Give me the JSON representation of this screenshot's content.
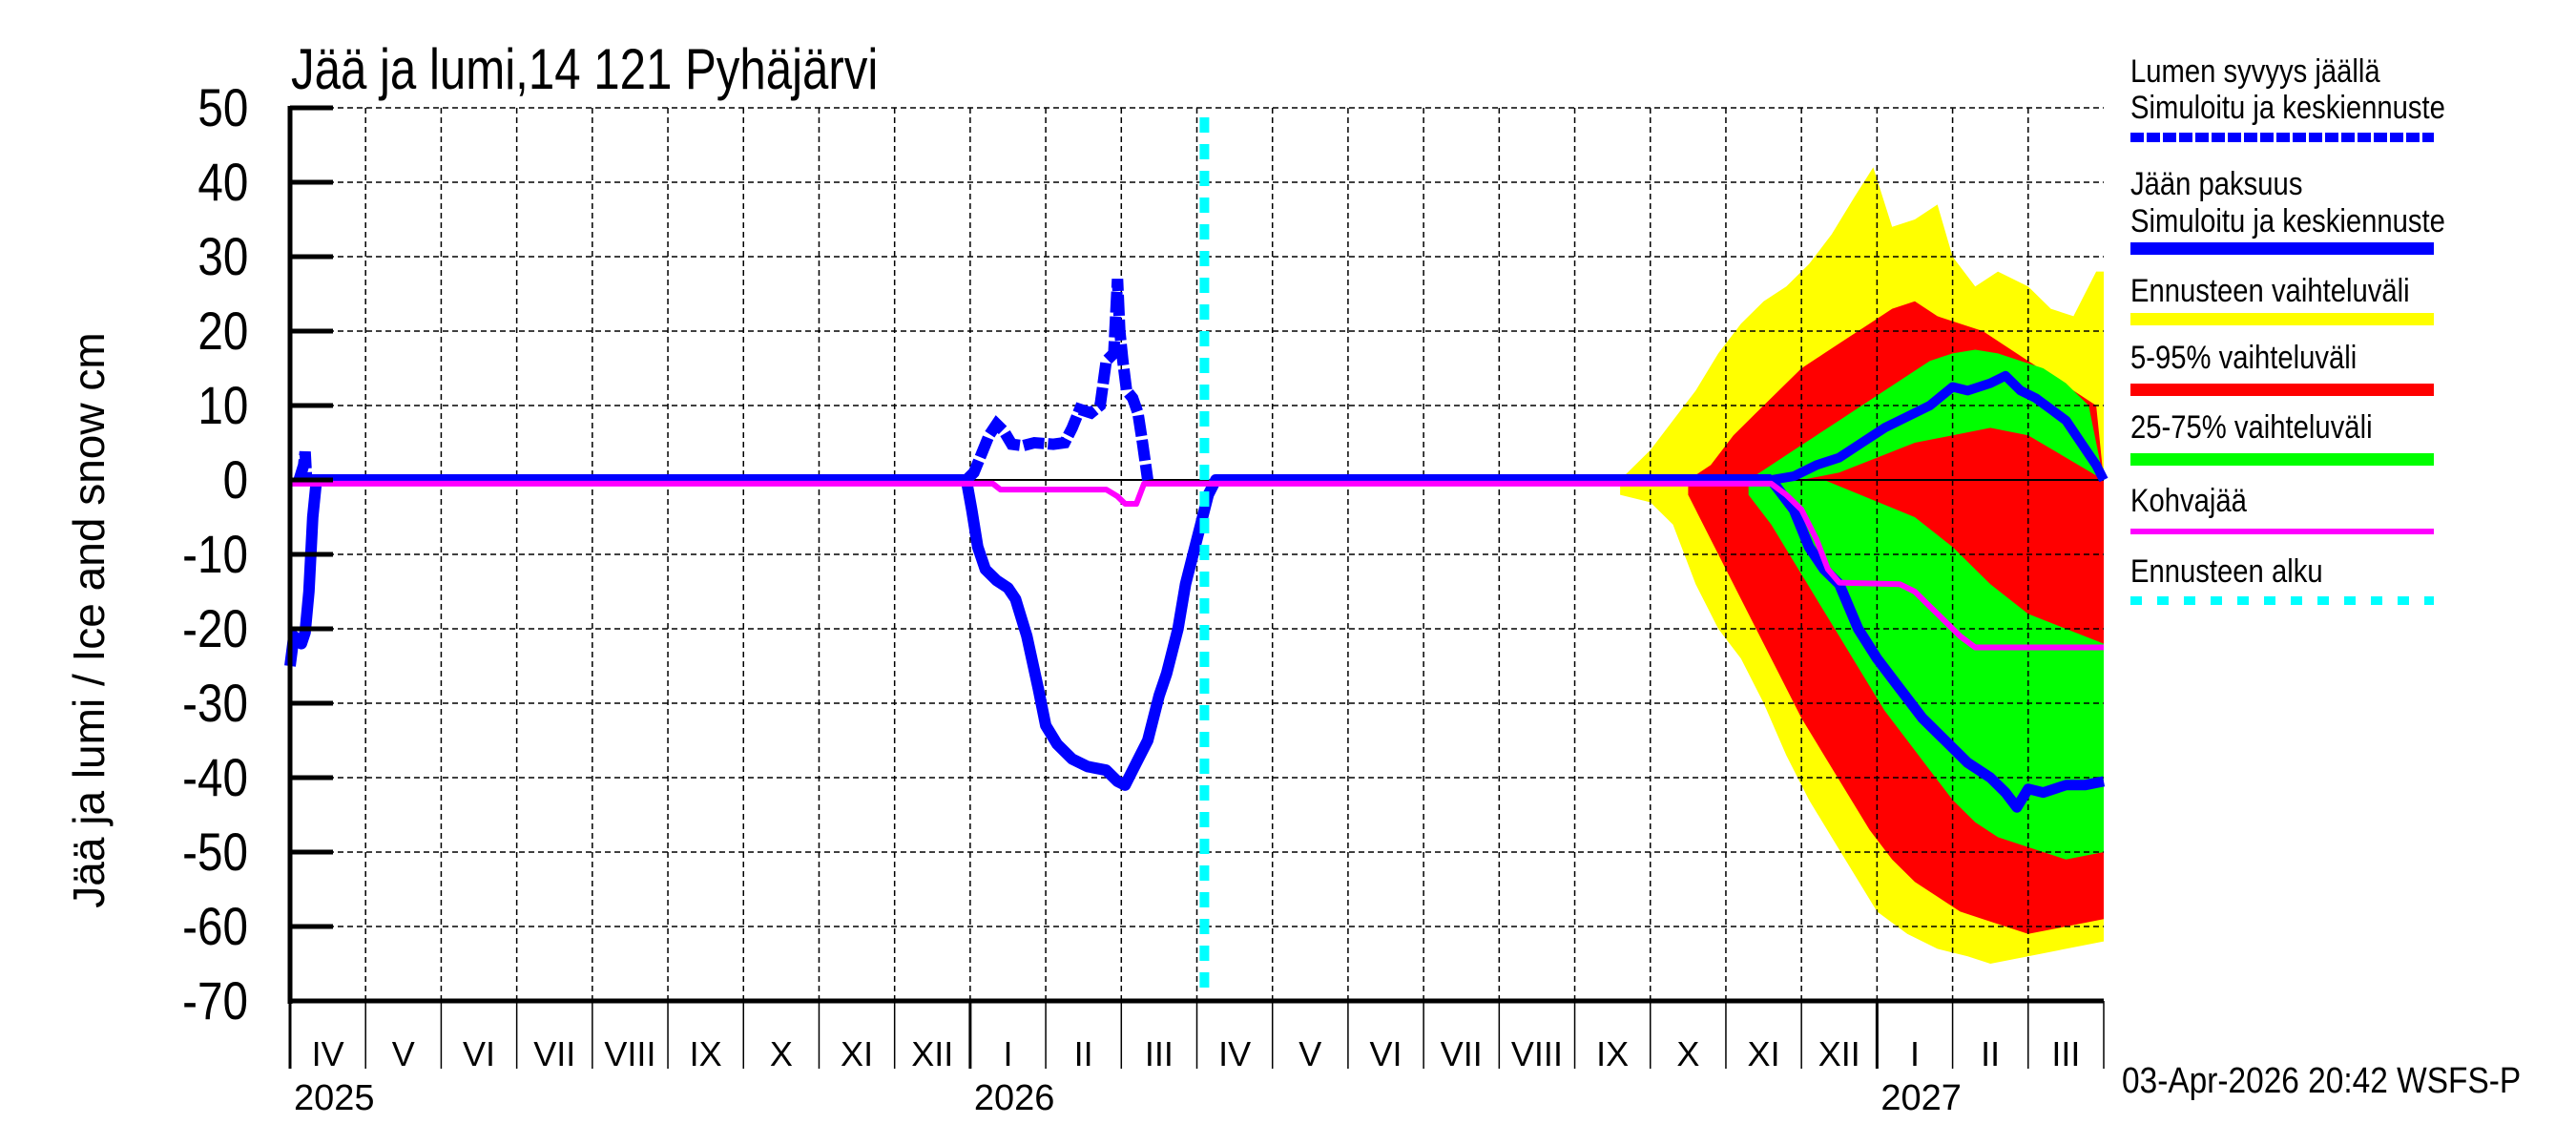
{
  "title": "Jää ja lumi,14 121 Pyhäjärvi",
  "y_axis_label": "Jää ja lumi / Ice and snow    cm",
  "y_ticks": [
    "50",
    "40",
    "30",
    "20",
    "10",
    "0",
    "-10",
    "-20",
    "-30",
    "-40",
    "-50",
    "-60",
    "-70"
  ],
  "x_months": [
    "IV",
    "V",
    "VI",
    "VII",
    "VIII",
    "IX",
    "X",
    "XI",
    "XII",
    "I",
    "II",
    "III",
    "IV",
    "V",
    "VI",
    "VII",
    "VIII",
    "IX",
    "X",
    "XI",
    "XII",
    "I",
    "II",
    "III"
  ],
  "x_years": [
    {
      "label": "2025",
      "month_index": 0
    },
    {
      "label": "2026",
      "month_index": 9
    },
    {
      "label": "2027",
      "month_index": 21
    }
  ],
  "timestamp": "03-Apr-2026 20:42 WSFS-P",
  "legend": {
    "snow_title": "Lumen syvyys jäällä",
    "snow_sub": "Simuloitu ja keskiennuste",
    "ice_title": "Jään paksuus",
    "ice_sub": "Simuloitu ja keskiennuste",
    "range_all": "Ennusteen vaihteluväli",
    "range_5_95": "5-95% vaihteluväli",
    "range_25_75": "25-75% vaihteluväli",
    "slush": "Kohvajää",
    "forecast_start": "Ennusteen alku"
  },
  "colors": {
    "snow_ice": "#0000ff",
    "range_all": "#ffff00",
    "range_5_95": "#ff0000",
    "range_25_75": "#00ff00",
    "slush": "#ff00ff",
    "forecast_start": "#00ffff"
  },
  "chart_data": {
    "type": "line",
    "title": "Jää ja lumi,14 121 Pyhäjärvi",
    "xlabel": "",
    "ylabel": "Jää ja lumi / Ice and snow cm",
    "ylim": [
      -70,
      50
    ],
    "x_unit": "months since 1 Apr 2025",
    "xlim": [
      0,
      24
    ],
    "grid": true,
    "legend_position": "right",
    "forecast_start_month_index": 12.1,
    "series": [
      {
        "name": "Lumen syvyys jäällä (simuloitu)",
        "style": "dashed",
        "points": [
          [
            0.12,
            0
          ],
          [
            0.18,
            2
          ],
          [
            0.2,
            3.8
          ],
          [
            0.22,
            0
          ],
          [
            8.95,
            0
          ],
          [
            9.05,
            1
          ],
          [
            9.15,
            3.5
          ],
          [
            9.25,
            6
          ],
          [
            9.35,
            7.5
          ],
          [
            9.45,
            6.5
          ],
          [
            9.55,
            4.8
          ],
          [
            9.7,
            4.6
          ],
          [
            9.85,
            5
          ],
          [
            10.1,
            4.8
          ],
          [
            10.25,
            5
          ],
          [
            10.35,
            7
          ],
          [
            10.45,
            9.5
          ],
          [
            10.6,
            9
          ],
          [
            10.72,
            10
          ],
          [
            10.8,
            16
          ],
          [
            10.9,
            17
          ],
          [
            10.95,
            27
          ],
          [
            10.98,
            20
          ],
          [
            11.02,
            16
          ],
          [
            11.07,
            12
          ],
          [
            11.15,
            11
          ],
          [
            11.22,
            9
          ],
          [
            11.28,
            5
          ],
          [
            11.35,
            0
          ]
        ]
      },
      {
        "name": "Jään paksuus (simuloitu)",
        "style": "solid",
        "points": [
          [
            0,
            -25
          ],
          [
            0.05,
            -21
          ],
          [
            0.1,
            -21.5
          ],
          [
            0.15,
            -22
          ],
          [
            0.2,
            -20.5
          ],
          [
            0.25,
            -15
          ],
          [
            0.3,
            -5
          ],
          [
            0.35,
            0
          ],
          [
            8.95,
            0
          ],
          [
            9.02,
            -4
          ],
          [
            9.1,
            -9
          ],
          [
            9.2,
            -12
          ],
          [
            9.35,
            -13.5
          ],
          [
            9.5,
            -14.5
          ],
          [
            9.6,
            -16
          ],
          [
            9.75,
            -21
          ],
          [
            9.9,
            -28
          ],
          [
            10.0,
            -33
          ],
          [
            10.15,
            -35.5
          ],
          [
            10.35,
            -37.5
          ],
          [
            10.55,
            -38.5
          ],
          [
            10.8,
            -39
          ],
          [
            10.95,
            -40.5
          ],
          [
            11.05,
            -41
          ],
          [
            11.2,
            -38
          ],
          [
            11.35,
            -35
          ],
          [
            11.5,
            -29
          ],
          [
            11.6,
            -26
          ],
          [
            11.75,
            -20
          ],
          [
            11.85,
            -14
          ],
          [
            11.95,
            -10
          ],
          [
            12.05,
            -6
          ],
          [
            12.15,
            -2
          ],
          [
            12.25,
            0
          ],
          [
            19.6,
            0
          ]
        ]
      },
      {
        "name": "Lumen syvyys jäällä (keskiennuste)",
        "style": "solid",
        "points": [
          [
            19.6,
            0
          ],
          [
            19.9,
            0.5
          ],
          [
            20.2,
            2
          ],
          [
            20.5,
            3
          ],
          [
            20.8,
            5
          ],
          [
            21.1,
            7
          ],
          [
            21.4,
            8.5
          ],
          [
            21.7,
            10
          ],
          [
            22.0,
            12.5
          ],
          [
            22.2,
            12
          ],
          [
            22.5,
            13
          ],
          [
            22.7,
            14
          ],
          [
            22.9,
            12
          ],
          [
            23.1,
            11
          ],
          [
            23.3,
            9.5
          ],
          [
            23.5,
            8
          ],
          [
            23.7,
            5
          ],
          [
            23.9,
            2
          ],
          [
            24.0,
            0
          ]
        ]
      },
      {
        "name": "Jään paksuus (keskiennuste)",
        "style": "solid",
        "points": [
          [
            19.6,
            0
          ],
          [
            19.9,
            -4
          ],
          [
            20.1,
            -9
          ],
          [
            20.3,
            -12
          ],
          [
            20.5,
            -14
          ],
          [
            20.75,
            -20
          ],
          [
            21.0,
            -24
          ],
          [
            21.3,
            -28
          ],
          [
            21.6,
            -32
          ],
          [
            21.9,
            -35
          ],
          [
            22.2,
            -38
          ],
          [
            22.5,
            -40
          ],
          [
            22.7,
            -42
          ],
          [
            22.85,
            -44
          ],
          [
            23.0,
            -41.5
          ],
          [
            23.2,
            -42
          ],
          [
            23.5,
            -41
          ],
          [
            23.75,
            -41
          ],
          [
            24.0,
            -40.5
          ]
        ]
      },
      {
        "name": "Kohvajää",
        "style": "solid",
        "points": [
          [
            0,
            -0.5
          ],
          [
            9.3,
            -0.5
          ],
          [
            9.4,
            -1.3
          ],
          [
            10.8,
            -1.3
          ],
          [
            10.95,
            -2.2
          ],
          [
            11.05,
            -3.2
          ],
          [
            11.2,
            -3.2
          ],
          [
            11.3,
            -0.5
          ],
          [
            19.6,
            -0.5
          ],
          [
            19.8,
            -2
          ],
          [
            20.0,
            -4
          ],
          [
            20.2,
            -8
          ],
          [
            20.35,
            -12
          ],
          [
            20.5,
            -13.8
          ],
          [
            21.3,
            -14
          ],
          [
            21.5,
            -15
          ],
          [
            21.7,
            -17
          ],
          [
            21.9,
            -19
          ],
          [
            22.1,
            -21
          ],
          [
            22.3,
            -22.5
          ],
          [
            24.0,
            -22.5
          ]
        ]
      }
    ],
    "bands": [
      {
        "name": "Ennusteen vaihteluväli",
        "upper": [
          [
            17.6,
            0
          ],
          [
            17.8,
            2
          ],
          [
            18.0,
            4
          ],
          [
            18.3,
            8
          ],
          [
            18.6,
            12
          ],
          [
            18.9,
            17
          ],
          [
            19.2,
            21
          ],
          [
            19.5,
            24
          ],
          [
            19.8,
            26
          ],
          [
            20.1,
            29
          ],
          [
            20.4,
            33
          ],
          [
            20.7,
            38
          ],
          [
            20.95,
            42
          ],
          [
            21.2,
            34
          ],
          [
            21.5,
            35
          ],
          [
            21.8,
            37
          ],
          [
            22.0,
            30
          ],
          [
            22.3,
            26
          ],
          [
            22.6,
            28
          ],
          [
            23.0,
            26
          ],
          [
            23.3,
            23
          ],
          [
            23.6,
            22
          ],
          [
            23.9,
            28
          ],
          [
            24.0,
            28
          ]
        ],
        "lower": [
          [
            17.6,
            -2
          ],
          [
            18.0,
            -3
          ],
          [
            18.3,
            -6
          ],
          [
            18.6,
            -14
          ],
          [
            18.9,
            -20
          ],
          [
            19.2,
            -24
          ],
          [
            19.5,
            -30
          ],
          [
            19.8,
            -37
          ],
          [
            20.1,
            -43
          ],
          [
            20.4,
            -48
          ],
          [
            20.7,
            -53
          ],
          [
            21.0,
            -58
          ],
          [
            21.4,
            -61
          ],
          [
            21.8,
            -63
          ],
          [
            22.2,
            -64
          ],
          [
            22.5,
            -65
          ],
          [
            23.0,
            -64
          ],
          [
            23.5,
            -63
          ],
          [
            24.0,
            -62
          ]
        ]
      },
      {
        "name": "5-95% vaihteluväli",
        "upper": [
          [
            18.5,
            0
          ],
          [
            18.8,
            2
          ],
          [
            19.1,
            6
          ],
          [
            19.4,
            9
          ],
          [
            19.7,
            12
          ],
          [
            20.0,
            15
          ],
          [
            20.3,
            17
          ],
          [
            20.6,
            19
          ],
          [
            20.9,
            21
          ],
          [
            21.2,
            23
          ],
          [
            21.5,
            24
          ],
          [
            21.8,
            22
          ],
          [
            22.1,
            21
          ],
          [
            22.4,
            20
          ],
          [
            22.7,
            18
          ],
          [
            23.0,
            16
          ],
          [
            23.3,
            14
          ],
          [
            23.6,
            12
          ],
          [
            23.9,
            10
          ],
          [
            24.0,
            0
          ]
        ],
        "lower": [
          [
            18.5,
            -2
          ],
          [
            18.8,
            -8
          ],
          [
            19.1,
            -14
          ],
          [
            19.4,
            -20
          ],
          [
            19.7,
            -26
          ],
          [
            20.0,
            -32
          ],
          [
            20.3,
            -37
          ],
          [
            20.6,
            -42
          ],
          [
            20.9,
            -47
          ],
          [
            21.2,
            -51
          ],
          [
            21.5,
            -54
          ],
          [
            21.8,
            -56
          ],
          [
            22.1,
            -58
          ],
          [
            22.4,
            -59
          ],
          [
            22.7,
            -60
          ],
          [
            23.0,
            -61
          ],
          [
            23.5,
            -60
          ],
          [
            24.0,
            -59
          ]
        ]
      },
      {
        "name": "25-75% vaihteluväli",
        "upper": [
          [
            19.3,
            0
          ],
          [
            19.6,
            2
          ],
          [
            19.9,
            4
          ],
          [
            20.2,
            6
          ],
          [
            20.5,
            8
          ],
          [
            20.8,
            10
          ],
          [
            21.1,
            12
          ],
          [
            21.4,
            14
          ],
          [
            21.7,
            16
          ],
          [
            22.0,
            17
          ],
          [
            22.3,
            17.5
          ],
          [
            22.6,
            17
          ],
          [
            22.9,
            16
          ],
          [
            23.2,
            15
          ],
          [
            23.5,
            13
          ],
          [
            23.8,
            10
          ],
          [
            24.0,
            0
          ]
        ],
        "lower": [
          [
            19.3,
            -2
          ],
          [
            19.6,
            -6
          ],
          [
            19.9,
            -11
          ],
          [
            20.2,
            -16
          ],
          [
            20.5,
            -21
          ],
          [
            20.8,
            -26
          ],
          [
            21.1,
            -31
          ],
          [
            21.4,
            -35
          ],
          [
            21.7,
            -39
          ],
          [
            22.0,
            -43
          ],
          [
            22.3,
            -46
          ],
          [
            22.6,
            -48
          ],
          [
            22.9,
            -49
          ],
          [
            23.2,
            -50
          ],
          [
            23.5,
            -51
          ],
          [
            24.0,
            -50
          ]
        ]
      }
    ],
    "inner_red_gaps": {
      "snow_lower_25": [
        [
          20.0,
          0
        ],
        [
          20.5,
          1
        ],
        [
          21.0,
          3
        ],
        [
          21.5,
          5
        ],
        [
          22.0,
          6
        ],
        [
          22.5,
          7
        ],
        [
          23.0,
          6
        ],
        [
          23.5,
          3
        ],
        [
          24.0,
          0
        ]
      ],
      "ice_upper_25_gap_top": [
        [
          20.3,
          0
        ],
        [
          21.5,
          -5
        ],
        [
          22.0,
          -9
        ],
        [
          22.5,
          -14
        ],
        [
          23.0,
          -18
        ],
        [
          23.5,
          -20
        ],
        [
          24.0,
          -22
        ]
      ]
    }
  }
}
